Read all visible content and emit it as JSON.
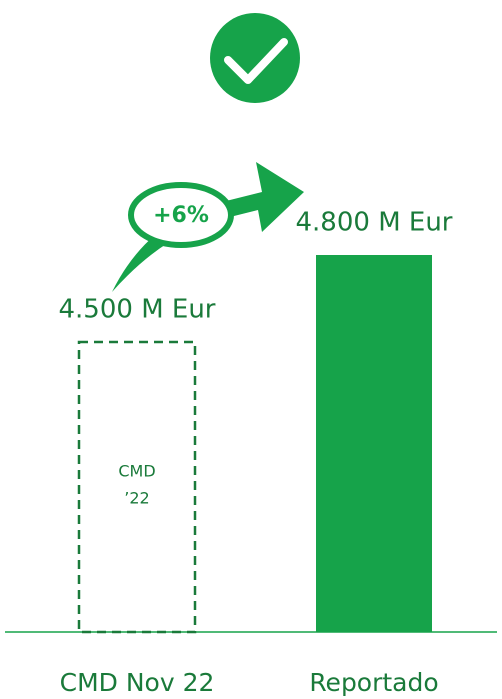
{
  "chart_data": {
    "type": "bar",
    "categories": [
      "CMD Nov 22",
      "Reportado"
    ],
    "values": [
      4500,
      4800
    ],
    "value_labels": [
      "4.500 M Eur",
      "4.800 M Eur"
    ],
    "color": "#16a34a",
    "bar_styles": [
      "dashed",
      "solid"
    ],
    "ylim": [
      3500,
      5000
    ],
    "change_label": "+6%",
    "bar_note": [
      "CMD",
      "’22"
    ]
  }
}
